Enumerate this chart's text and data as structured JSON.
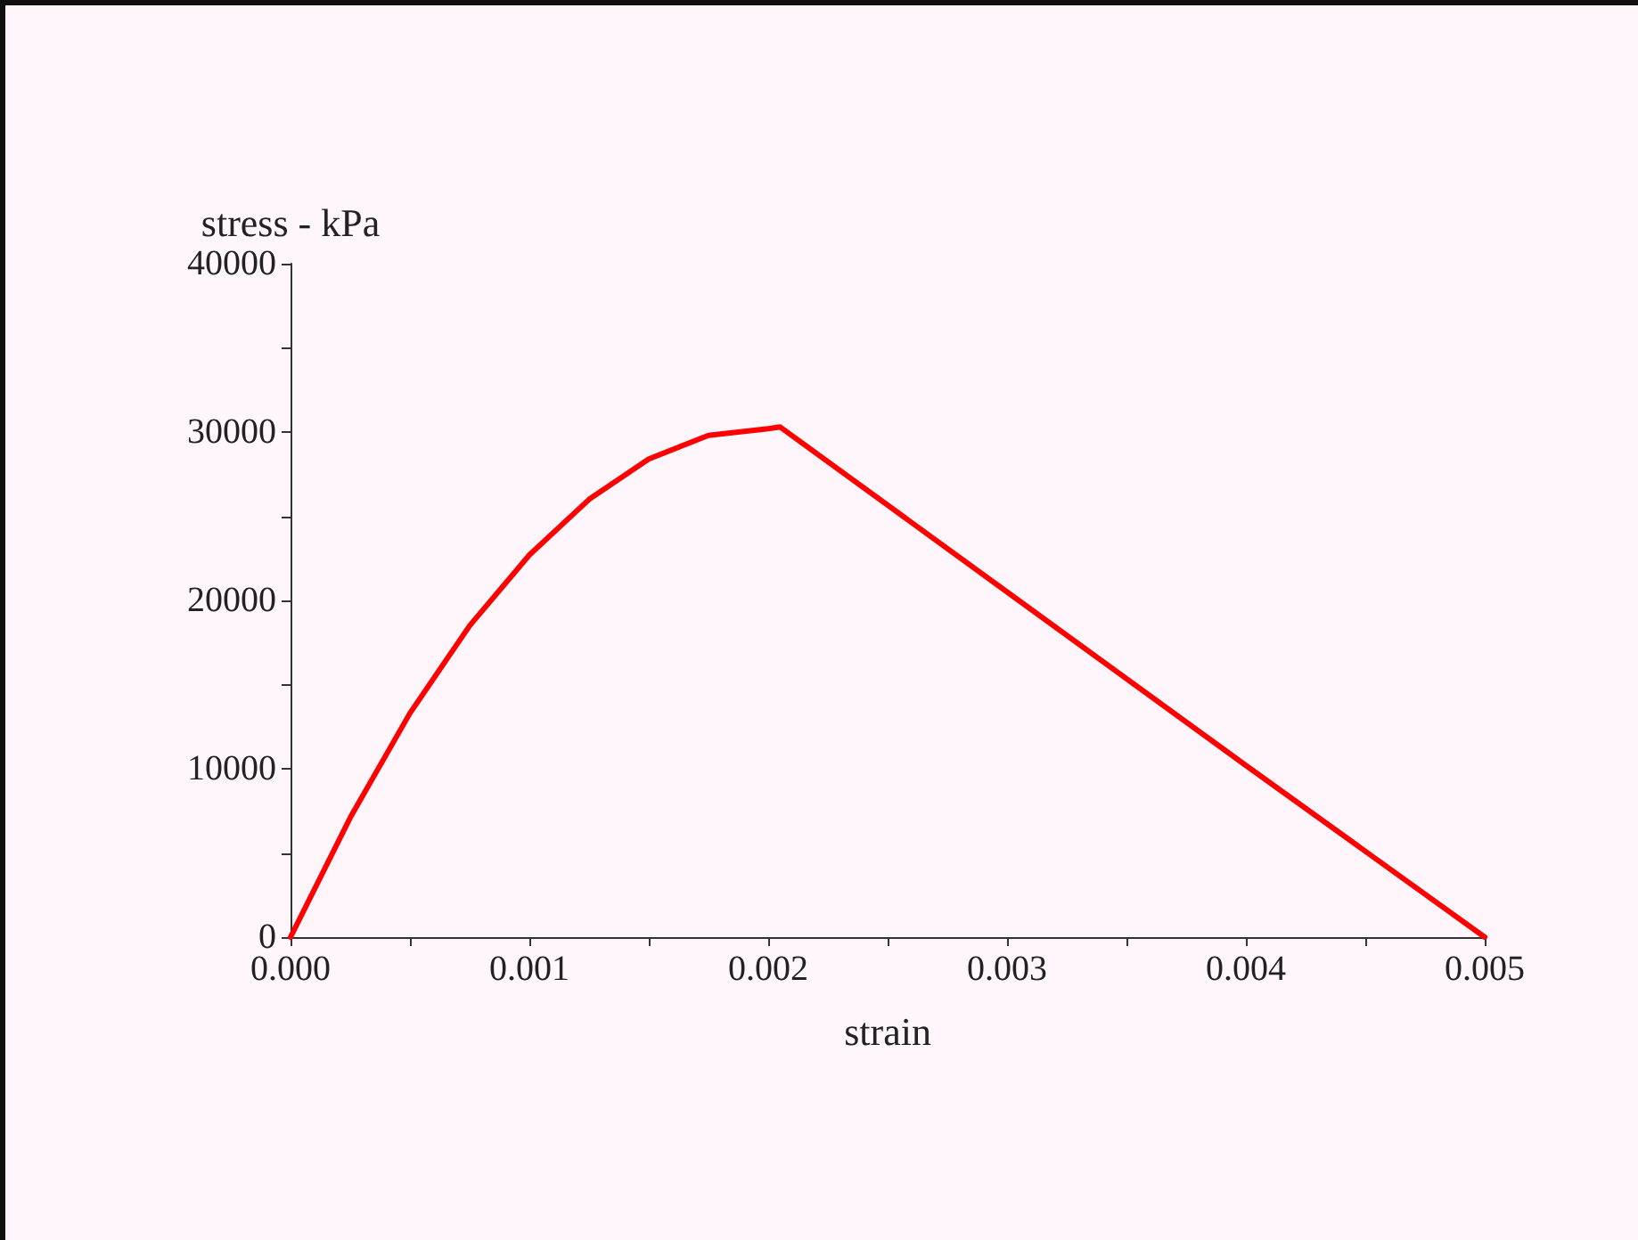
{
  "chart_data": {
    "type": "line",
    "xlabel": "strain",
    "ylabel": "stress - kPa",
    "x": [
      0,
      0.00025,
      0.0005,
      0.00075,
      0.001,
      0.00125,
      0.0015,
      0.00175,
      0.002,
      0.00205,
      0.003,
      0.004,
      0.005
    ],
    "series": [
      {
        "color": "#ff0000",
        "values": [
          0,
          7100,
          13300,
          18500,
          22700,
          26000,
          28400,
          29800,
          30200,
          30300,
          20500,
          10200,
          0
        ]
      }
    ],
    "xlim": [
      0,
      0.005
    ],
    "xticks": [
      {
        "value": 0,
        "label": "0.000"
      },
      {
        "value": 0.0005,
        "label": null
      },
      {
        "value": 0.001,
        "label": "0.001"
      },
      {
        "value": 0.0015,
        "label": null
      },
      {
        "value": 0.002,
        "label": "0.002"
      },
      {
        "value": 0.0025,
        "label": null
      },
      {
        "value": 0.003,
        "label": "0.003"
      },
      {
        "value": 0.0035,
        "label": null
      },
      {
        "value": 0.004,
        "label": "0.004"
      },
      {
        "value": 0.0045,
        "label": null
      },
      {
        "value": 0.005,
        "label": "0.005"
      }
    ],
    "ylim": [
      0,
      40000
    ],
    "yticks": [
      0,
      {
        "value": 5000,
        "label": null
      },
      10000,
      {
        "value": 15000,
        "label": null
      },
      20000,
      {
        "value": 25000,
        "label": null
      },
      30000,
      {
        "value": 35000,
        "label": null
      },
      40000
    ],
    "grid": false,
    "marker": "none",
    "line_style": "solid"
  }
}
